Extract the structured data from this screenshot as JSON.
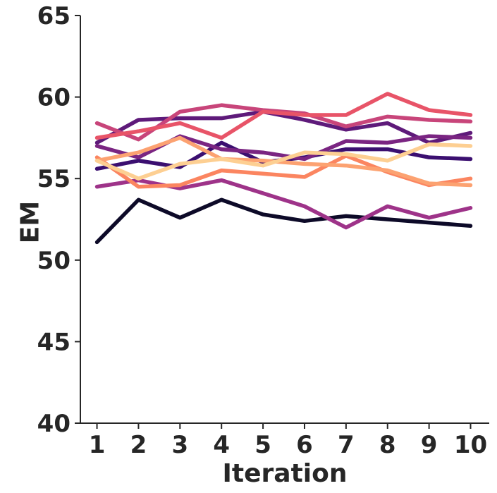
{
  "chart_data": {
    "type": "line",
    "xlabel": "Iteration",
    "ylabel": "EM",
    "x": [
      1,
      2,
      3,
      4,
      5,
      6,
      7,
      8,
      9,
      10
    ],
    "xticks": [
      "1",
      "2",
      "3",
      "4",
      "5",
      "6",
      "7",
      "8",
      "9",
      "10"
    ],
    "yticks": [
      "40",
      "45",
      "50",
      "55",
      "60",
      "65"
    ],
    "ylim": [
      40,
      65
    ],
    "xlim": [
      0.6,
      10.45
    ],
    "grid": false,
    "legend": "none",
    "series": [
      {
        "color": "#0d0a28",
        "values": [
          51.1,
          53.7,
          52.6,
          53.7,
          52.8,
          52.4,
          52.7,
          52.5,
          52.3,
          52.1
        ]
      },
      {
        "color": "#3b0f70",
        "values": [
          55.6,
          56.1,
          55.7,
          57.2,
          56.0,
          56.3,
          56.8,
          56.8,
          56.3,
          56.2
        ]
      },
      {
        "color": "#5e1a7a",
        "values": [
          57.2,
          58.6,
          58.7,
          58.7,
          59.1,
          58.6,
          58.0,
          58.4,
          57.2,
          57.8
        ]
      },
      {
        "color": "#7a2582",
        "values": [
          57.0,
          56.3,
          57.6,
          56.8,
          56.6,
          56.2,
          57.3,
          57.2,
          57.6,
          57.5
        ]
      },
      {
        "color": "#9e3389",
        "values": [
          54.5,
          54.9,
          54.4,
          54.9,
          54.1,
          53.3,
          52.0,
          53.3,
          52.6,
          53.2
        ]
      },
      {
        "color": "#c8457a",
        "values": [
          58.4,
          57.4,
          59.1,
          59.5,
          59.2,
          59.0,
          58.2,
          58.8,
          58.6,
          58.5
        ]
      },
      {
        "color": "#e85468",
        "values": [
          57.5,
          57.9,
          58.4,
          57.5,
          59.1,
          58.9,
          58.9,
          60.2,
          59.2,
          58.9
        ]
      },
      {
        "color": "#fb8560",
        "values": [
          56.3,
          54.5,
          54.6,
          55.5,
          55.3,
          55.1,
          56.4,
          55.4,
          54.6,
          55.0
        ]
      },
      {
        "color": "#fca271",
        "values": [
          56.1,
          56.6,
          57.5,
          56.2,
          56.1,
          55.9,
          55.8,
          55.5,
          54.7,
          54.6
        ]
      },
      {
        "color": "#fdcf92",
        "values": [
          56.1,
          55.0,
          55.9,
          56.2,
          55.8,
          56.6,
          56.5,
          56.1,
          57.1,
          57.0
        ]
      }
    ]
  }
}
